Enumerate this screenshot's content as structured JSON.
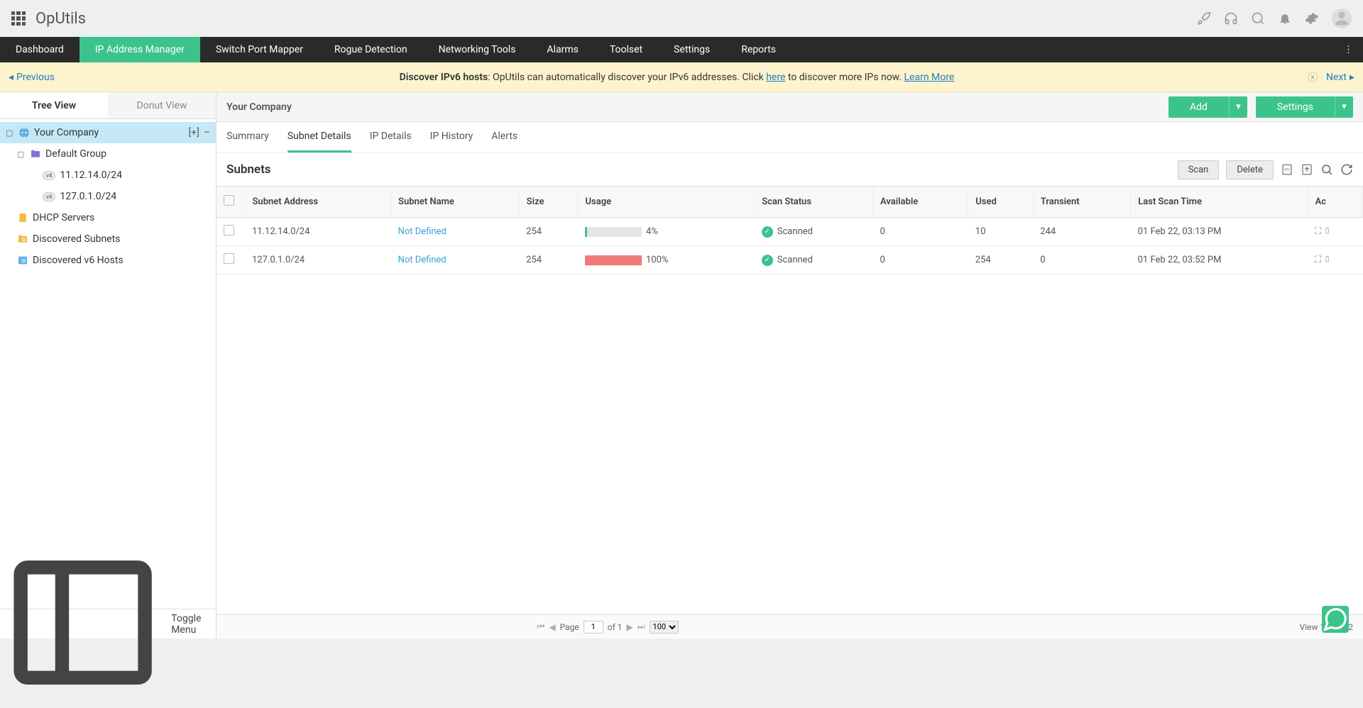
{
  "brand": "OpUtils",
  "nav": {
    "items": [
      "Dashboard",
      "IP Address Manager",
      "Switch Port Mapper",
      "Rogue Detection",
      "Networking Tools",
      "Alarms",
      "Toolset",
      "Settings",
      "Reports"
    ],
    "active_index": 1
  },
  "banner": {
    "prev": "Previous",
    "next": "Next",
    "title": "Discover IPv6 hosts",
    "body_1": ": OpUtils can automatically discover your IPv6 addresses. Click ",
    "link_here": "here",
    "body_2": " to discover more IPs now. ",
    "learn_more": "Learn More"
  },
  "sidebar": {
    "tabs": {
      "tree": "Tree View",
      "donut": "Donut View",
      "active": "tree"
    },
    "toggle": "Toggle Menu",
    "root": {
      "label": "Your Company",
      "add": "[+]",
      "minus": "–"
    },
    "group": {
      "label": "Default Group"
    },
    "subnets": [
      "11.12.14.0/24",
      "127.0.1.0/24"
    ],
    "items": [
      "DHCP Servers",
      "Discovered Subnets",
      "Discovered v6 Hosts"
    ]
  },
  "crumb": "Your Company",
  "buttons": {
    "add": "Add",
    "settings": "Settings",
    "scan": "Scan",
    "delete": "Delete"
  },
  "content_tabs": {
    "items": [
      "Summary",
      "Subnet Details",
      "IP Details",
      "IP History",
      "Alerts"
    ],
    "active_index": 1
  },
  "panel_title": "Subnets",
  "table": {
    "headers": [
      "Subnet Address",
      "Subnet Name",
      "Size",
      "Usage",
      "Scan Status",
      "Available",
      "Used",
      "Transient",
      "Last Scan Time",
      "Ac"
    ],
    "rows": [
      {
        "addr": "11.12.14.0/24",
        "name": "Not Defined",
        "size": "254",
        "usage_pct": 4,
        "usage_label": "4%",
        "usage_color": "#3cc38b",
        "status": "Scanned",
        "available": "0",
        "used": "10",
        "transient": "244",
        "scan_time": "01 Feb 22, 03:13 PM"
      },
      {
        "addr": "127.0.1.0/24",
        "name": "Not Defined",
        "size": "254",
        "usage_pct": 100,
        "usage_label": "100%",
        "usage_color": "#f17878",
        "status": "Scanned",
        "available": "0",
        "used": "254",
        "transient": "0",
        "scan_time": "01 Feb 22, 03:52 PM"
      }
    ]
  },
  "pager": {
    "page_label": "Page",
    "page": "1",
    "of": "of 1",
    "per_page": "100",
    "view": "View 1 - 2 of 2"
  }
}
